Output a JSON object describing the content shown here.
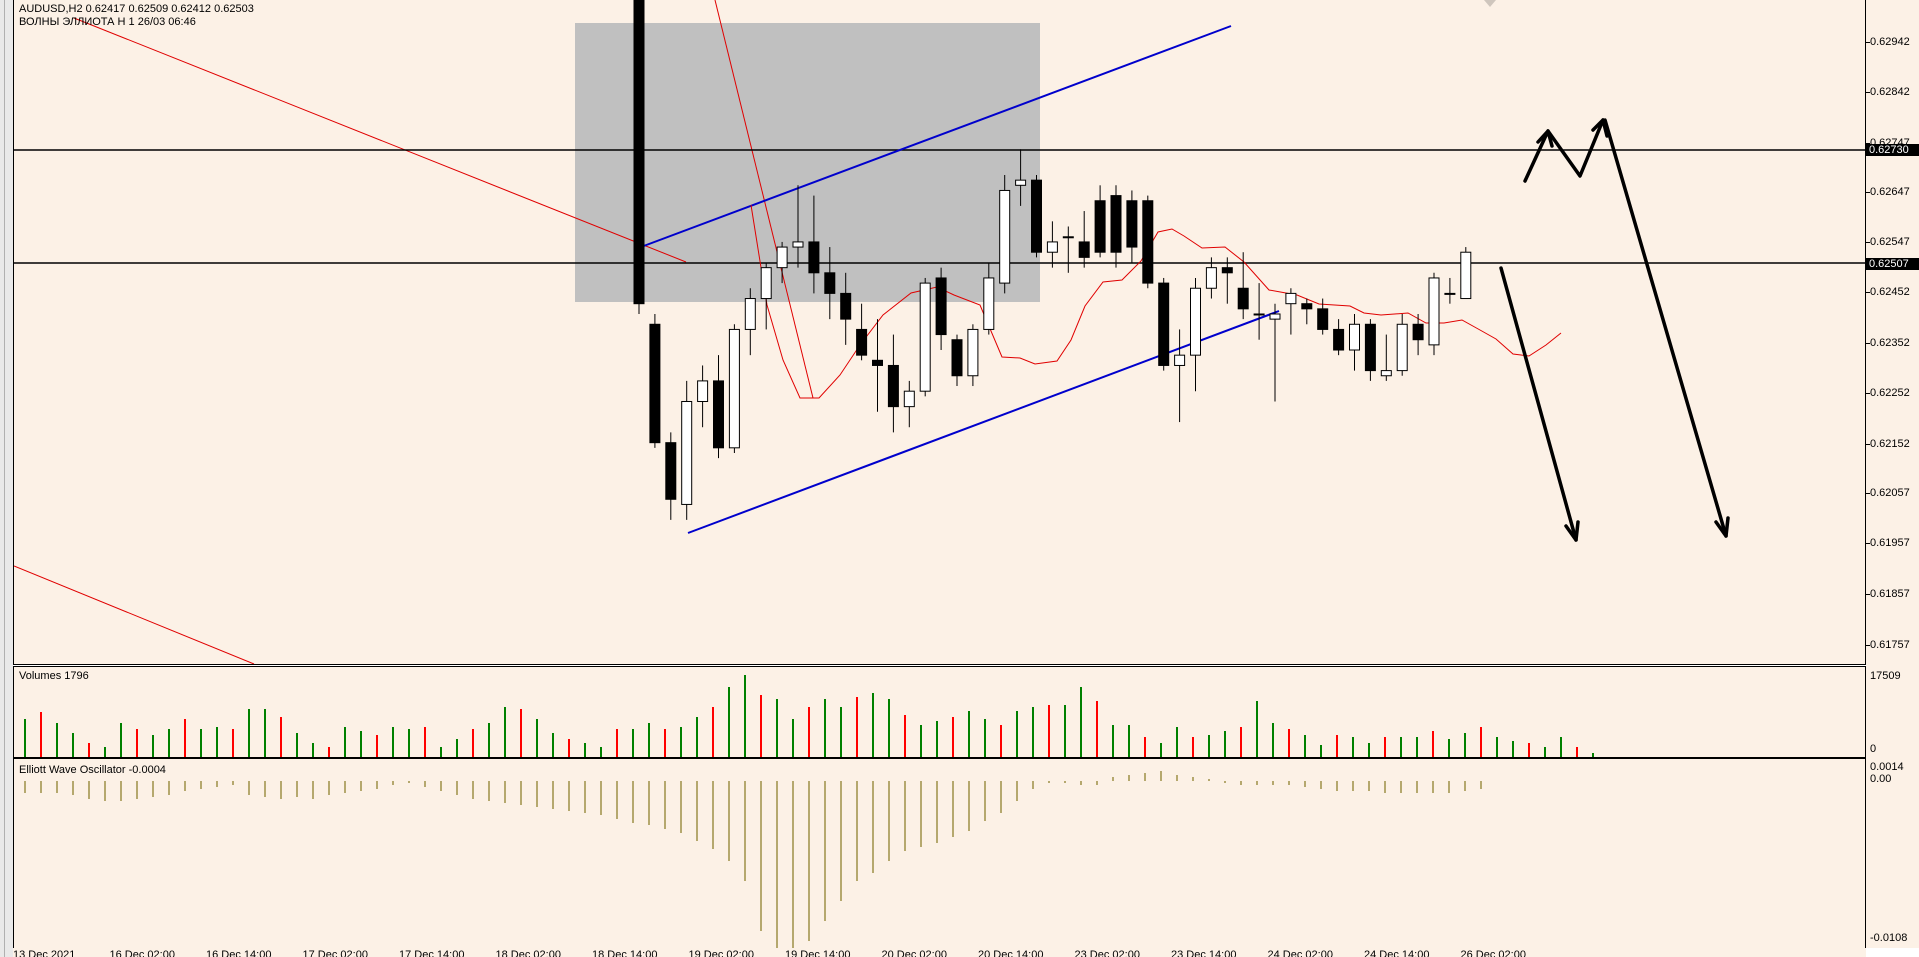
{
  "header": {
    "symbol_line": "AUDUSD,H2  0.62417 0.62509 0.62412 0.62503",
    "indicator_line": "ВОЛНЫ ЭЛЛИОТА Н 1 26/03 06:46"
  },
  "price_axis": {
    "ticks": [
      "0.62942",
      "0.62842",
      "0.62747",
      "0.62647",
      "0.62547",
      "0.62452",
      "0.62352",
      "0.62252",
      "0.62152",
      "0.62057",
      "0.61957",
      "0.61857",
      "0.61757"
    ],
    "tags": [
      "0.62730",
      "0.62507"
    ]
  },
  "volumes": {
    "label": "Volumes 1796",
    "axis_top": "17509",
    "axis_bottom": "0"
  },
  "oscillator": {
    "label": "Elliott Wave Oscillator -0.0004",
    "axis_ticks": [
      "0.0014",
      "0.00",
      "-0.0108"
    ]
  },
  "time_axis": {
    "labels": [
      "13 Dec 2021",
      "16 Dec 02:00",
      "16 Dec 14:00",
      "17 Dec 02:00",
      "17 Dec 14:00",
      "18 Dec 02:00",
      "18 Dec 14:00",
      "19 Dec 02:00",
      "19 Dec 14:00",
      "20 Dec 02:00",
      "20 Dec 14:00",
      "23 Dec 02:00",
      "23 Dec 14:00",
      "24 Dec 02:00",
      "24 Dec 14:00",
      "26 Dec 02:00"
    ]
  },
  "colors": {
    "background": "#fcf1e6",
    "bull_volume": "#008000",
    "bear_volume": "#ff0000",
    "trendline": "#0000cc",
    "moving_average": "#e00000",
    "oscillator": "#b5a86e",
    "zone": "#c0c0c0"
  },
  "chart_data": {
    "type": "candlestick",
    "symbol": "AUDUSD",
    "timeframe": "H2",
    "ylim": [
      0.617,
      0.6299
    ],
    "candles": [
      [
        0.6302,
        0.6303,
        0.6238,
        0.624
      ],
      [
        0.6236,
        0.6238,
        0.6212,
        0.6213
      ],
      [
        0.6213,
        0.6215,
        0.6198,
        0.6202
      ],
      [
        0.6201,
        0.6225,
        0.6198,
        0.6221
      ],
      [
        0.6221,
        0.6228,
        0.6216,
        0.6225
      ],
      [
        0.6225,
        0.623,
        0.621,
        0.6212
      ],
      [
        0.6212,
        0.6236,
        0.6211,
        0.6235
      ],
      [
        0.6235,
        0.6243,
        0.623,
        0.6241
      ],
      [
        0.6241,
        0.6248,
        0.6235,
        0.6247
      ],
      [
        0.6247,
        0.6252,
        0.6244,
        0.6251
      ],
      [
        0.6251,
        0.6263,
        0.6247,
        0.6252
      ],
      [
        0.6252,
        0.6261,
        0.6242,
        0.6246
      ],
      [
        0.6246,
        0.6251,
        0.6237,
        0.6242
      ],
      [
        0.6242,
        0.6246,
        0.6232,
        0.6237
      ],
      [
        0.6235,
        0.624,
        0.6229,
        0.623
      ],
      [
        0.6229,
        0.6237,
        0.6219,
        0.6228
      ],
      [
        0.6228,
        0.6234,
        0.6215,
        0.622
      ],
      [
        0.622,
        0.6225,
        0.6216,
        0.6223
      ],
      [
        0.6223,
        0.6245,
        0.6222,
        0.6244
      ],
      [
        0.6245,
        0.6247,
        0.6231,
        0.6234
      ],
      [
        0.6233,
        0.6234,
        0.6224,
        0.6226
      ],
      [
        0.6226,
        0.6236,
        0.6224,
        0.6235
      ],
      [
        0.6235,
        0.6248,
        0.6234,
        0.6245
      ],
      [
        0.6244,
        0.6265,
        0.6242,
        0.6262
      ],
      [
        0.6263,
        0.627,
        0.6259,
        0.6264
      ],
      [
        0.6264,
        0.6265,
        0.6249,
        0.625
      ],
      [
        0.625,
        0.6256,
        0.6247,
        0.6252
      ],
      [
        0.6253,
        0.6255,
        0.6246,
        0.6253
      ],
      [
        0.6252,
        0.6258,
        0.6247,
        0.6249
      ],
      [
        0.626,
        0.6263,
        0.6249,
        0.625
      ],
      [
        0.6261,
        0.6263,
        0.6247,
        0.625
      ],
      [
        0.626,
        0.6262,
        0.6248,
        0.6251
      ],
      [
        0.626,
        0.6261,
        0.6243,
        0.6244
      ],
      [
        0.6244,
        0.6245,
        0.6227,
        0.6228
      ],
      [
        0.6228,
        0.6235,
        0.6217,
        0.623
      ],
      [
        0.623,
        0.6245,
        0.6223,
        0.6243
      ],
      [
        0.6243,
        0.6249,
        0.6241,
        0.6247
      ],
      [
        0.6247,
        0.6249,
        0.624,
        0.6246
      ],
      [
        0.6243,
        0.625,
        0.6237,
        0.6239
      ],
      [
        0.6238,
        0.6244,
        0.6233,
        0.6238
      ],
      [
        0.6237,
        0.624,
        0.6221,
        0.6238
      ],
      [
        0.624,
        0.6243,
        0.6234,
        0.6242
      ],
      [
        0.624,
        0.6241,
        0.6236,
        0.6239
      ],
      [
        0.6239,
        0.6241,
        0.6234,
        0.6235
      ],
      [
        0.6235,
        0.6237,
        0.623,
        0.6231
      ],
      [
        0.6231,
        0.6238,
        0.6227,
        0.6236
      ],
      [
        0.6236,
        0.6237,
        0.6225,
        0.6227
      ],
      [
        0.6226,
        0.6234,
        0.6225,
        0.6227
      ],
      [
        0.6227,
        0.6238,
        0.6226,
        0.6236
      ],
      [
        0.6236,
        0.6238,
        0.623,
        0.6233
      ],
      [
        0.6232,
        0.6246,
        0.623,
        0.6245
      ],
      [
        0.6242,
        0.6245,
        0.624,
        0.6242
      ],
      [
        0.6241,
        0.6251,
        0.6241,
        0.625
      ]
    ]
  }
}
